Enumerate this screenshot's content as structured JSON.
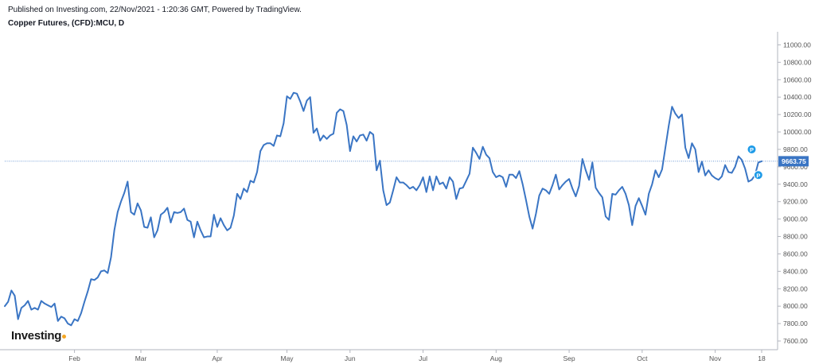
{
  "header": {
    "published": "Published on Investing.com, 22/Nov/2021 - 1:20:36 GMT, Powered by TradingView.",
    "title": "Copper Futures, (CFD):MCU, D"
  },
  "logo": {
    "text": "Investing",
    "suffix": ".com"
  },
  "colors": {
    "line": "#3a75c4",
    "price_label_bg": "#3a75c4",
    "marker": "#1e9be8",
    "price_line": "#3a75c4"
  },
  "chart_data": {
    "type": "line",
    "title": "Copper Futures, (CFD):MCU, D",
    "xlabel": "",
    "ylabel": "",
    "ylim": [
      7500,
      11150
    ],
    "grid": false,
    "yticks": [
      7600,
      7800,
      8000,
      8200,
      8400,
      8600,
      8800,
      9000,
      9200,
      9400,
      9600,
      9800,
      10000,
      10200,
      10400,
      10600,
      10800,
      11000
    ],
    "ytick_labels": [
      "7600.00",
      "7800.00",
      "8000.00",
      "8200.00",
      "8400.00",
      "8600.00",
      "8800.00",
      "9000.00",
      "9200.00",
      "9400.00",
      "9600.00",
      "9800.00",
      "10000.00",
      "10200.00",
      "10400.00",
      "10600.00",
      "10800.00",
      "11000.00"
    ],
    "xticks": [
      {
        "label": "Feb",
        "index": 21
      },
      {
        "label": "Mar",
        "index": 41
      },
      {
        "label": "Apr",
        "index": 64
      },
      {
        "label": "May",
        "index": 85
      },
      {
        "label": "Jun",
        "index": 104
      },
      {
        "label": "Jul",
        "index": 126
      },
      {
        "label": "Aug",
        "index": 148
      },
      {
        "label": "Sep",
        "index": 170
      },
      {
        "label": "Oct",
        "index": 192
      },
      {
        "label": "Nov",
        "index": 214
      },
      {
        "label": "18",
        "index": 228
      }
    ],
    "last_price": 9663.75,
    "last_price_label": "9663.75",
    "markers": [
      {
        "label": "P",
        "index": 225,
        "value": 9800
      },
      {
        "label": "P",
        "index": 227,
        "value": 9505
      }
    ],
    "series": [
      {
        "values": [
          8000,
          8050,
          8180,
          8120,
          7850,
          7980,
          8010,
          8060,
          7960,
          7980,
          7960,
          8060,
          8030,
          8010,
          7990,
          8030,
          7830,
          7880,
          7860,
          7800,
          7780,
          7850,
          7830,
          7920,
          8050,
          8170,
          8310,
          8300,
          8330,
          8400,
          8410,
          8380,
          8560,
          8870,
          9080,
          9200,
          9300,
          9430,
          9080,
          9050,
          9180,
          9100,
          8910,
          8900,
          9020,
          8790,
          8870,
          9050,
          9080,
          9130,
          8960,
          9080,
          9070,
          9080,
          9120,
          8990,
          8970,
          8790,
          8970,
          8870,
          8790,
          8800,
          8800,
          9050,
          8910,
          9010,
          8930,
          8870,
          8900,
          9040,
          9290,
          9230,
          9350,
          9310,
          9440,
          9420,
          9540,
          9780,
          9850,
          9870,
          9870,
          9840,
          9960,
          9950,
          10100,
          10410,
          10380,
          10450,
          10440,
          10350,
          10240,
          10360,
          10400,
          9990,
          10040,
          9900,
          9960,
          9920,
          9960,
          9980,
          10220,
          10260,
          10240,
          10080,
          9780,
          9950,
          9890,
          9960,
          9970,
          9900,
          10000,
          9970,
          9560,
          9670,
          9330,
          9160,
          9190,
          9330,
          9480,
          9420,
          9420,
          9390,
          9350,
          9370,
          9330,
          9390,
          9480,
          9310,
          9490,
          9330,
          9490,
          9400,
          9420,
          9350,
          9480,
          9430,
          9230,
          9350,
          9360,
          9440,
          9520,
          9820,
          9760,
          9690,
          9830,
          9740,
          9700,
          9540,
          9480,
          9500,
          9480,
          9370,
          9510,
          9510,
          9470,
          9550,
          9400,
          9220,
          9030,
          8890,
          9060,
          9270,
          9350,
          9330,
          9290,
          9390,
          9510,
          9340,
          9390,
          9430,
          9460,
          9350,
          9260,
          9380,
          9690,
          9560,
          9450,
          9650,
          9360,
          9300,
          9250,
          9030,
          8990,
          9290,
          9280,
          9330,
          9370,
          9290,
          9160,
          8930,
          9150,
          9240,
          9150,
          9050,
          9290,
          9400,
          9560,
          9480,
          9570,
          9820,
          10070,
          10290,
          10210,
          10160,
          10200,
          9820,
          9700,
          9870,
          9800,
          9540,
          9660,
          9500,
          9560,
          9500,
          9470,
          9450,
          9490,
          9620,
          9540,
          9530,
          9600,
          9720,
          9680,
          9580,
          9430,
          9450,
          9505,
          9650,
          9663.75
        ]
      }
    ]
  }
}
